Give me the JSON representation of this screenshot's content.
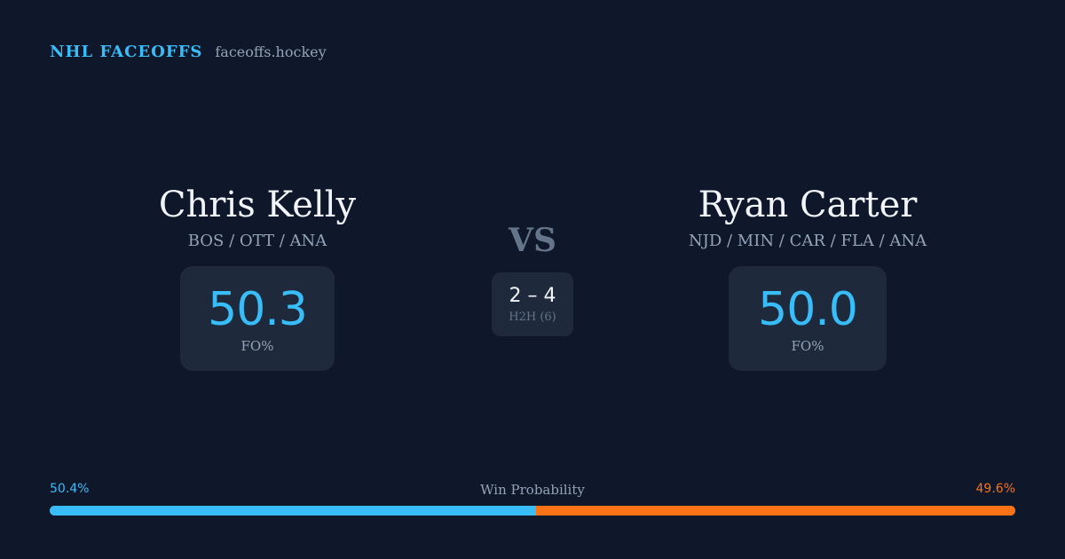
{
  "brand": {
    "title": "NHL FACEOFFS",
    "site": "faceoffs.hockey"
  },
  "left_player": {
    "name": "Chris Kelly",
    "teams": "BOS / OTT / ANA",
    "fo_pct": "50.3",
    "stat_label": "FO%"
  },
  "right_player": {
    "name": "Ryan Carter",
    "teams": "NJD / MIN / CAR / FLA / ANA",
    "fo_pct": "50.0",
    "stat_label": "FO%"
  },
  "versus": {
    "label": "VS",
    "h2h_score": "2 – 4",
    "h2h_label": "H2H (6)"
  },
  "win_probability": {
    "title": "Win Probability",
    "left_label": "50.4%",
    "right_label": "49.6%",
    "left_fraction": 0.504,
    "left_color": "#38bdf8",
    "right_color": "#f97316"
  }
}
